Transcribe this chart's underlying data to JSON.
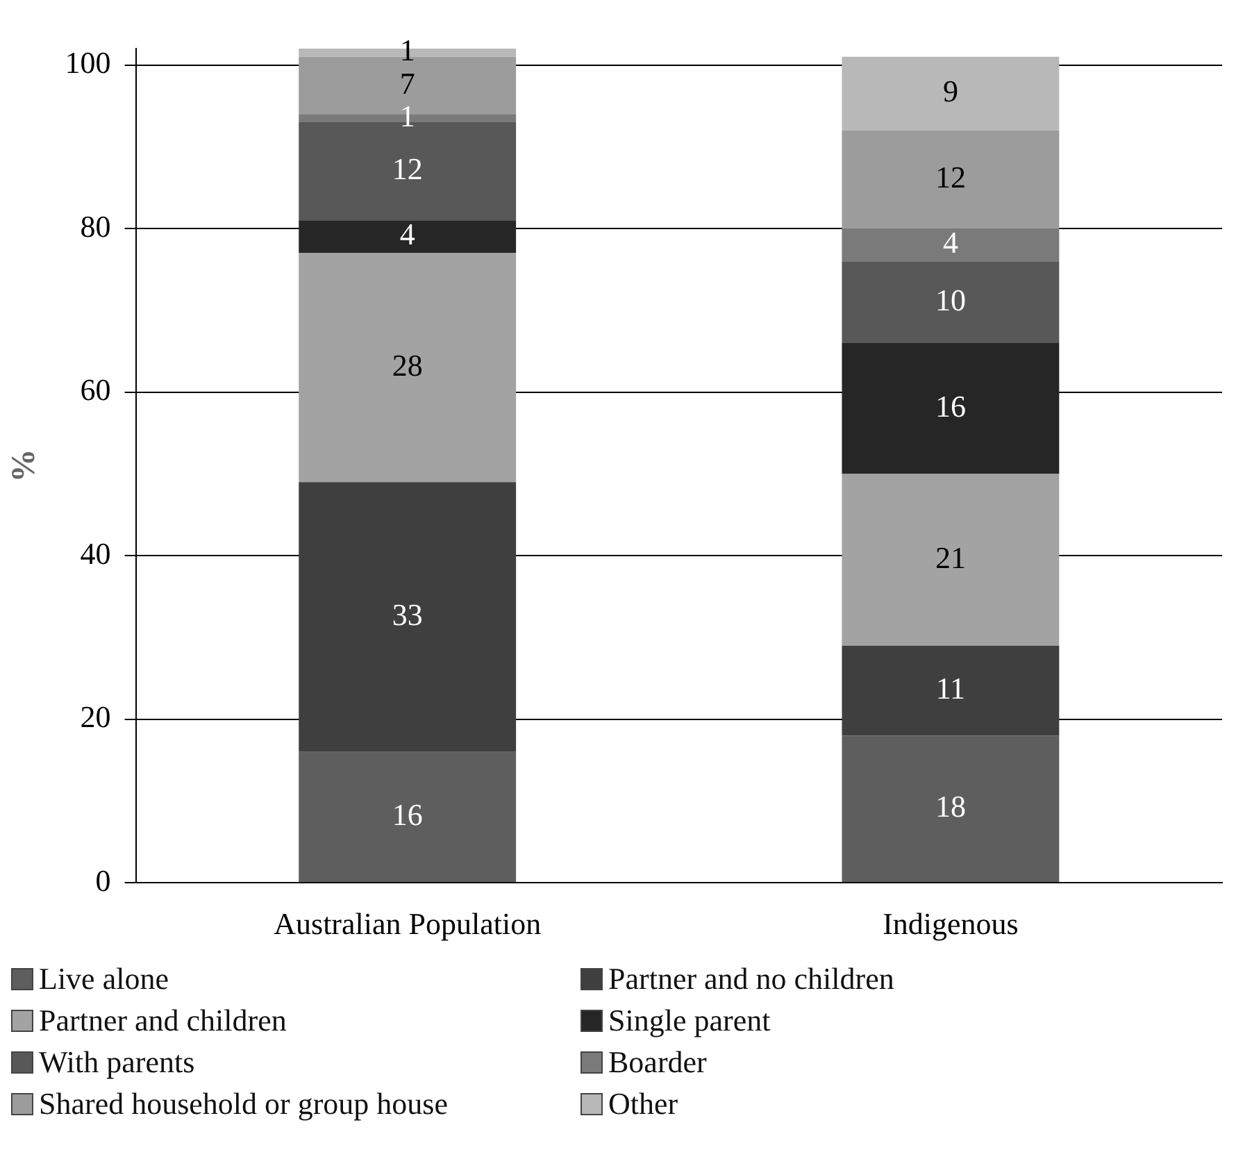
{
  "chart_data": {
    "type": "bar",
    "stacked": true,
    "ylabel": "%",
    "categories": [
      "Australian Population",
      "Indigenous"
    ],
    "series": [
      {
        "name": "Live alone",
        "color": "#5e5e5e",
        "values": [
          16,
          18
        ]
      },
      {
        "name": "Partner and no children",
        "color": "#3f3f3f",
        "values": [
          33,
          11
        ]
      },
      {
        "name": "Partner and children",
        "color": "#a3a3a3",
        "values": [
          28,
          21
        ]
      },
      {
        "name": "Single parent",
        "color": "#262626",
        "values": [
          4,
          16
        ]
      },
      {
        "name": "With parents",
        "color": "#585858",
        "values": [
          12,
          10
        ]
      },
      {
        "name": "Boarder",
        "color": "#7a7a7a",
        "values": [
          1,
          4
        ]
      },
      {
        "name": "Shared household or group house",
        "color": "#9c9c9c",
        "values": [
          7,
          12
        ]
      },
      {
        "name": "Other",
        "color": "#b8b8b8",
        "values": [
          1,
          9
        ]
      }
    ],
    "ylim": [
      0,
      102
    ],
    "yticks": [
      0,
      20,
      40,
      60,
      80,
      100
    ],
    "grid": "y",
    "legend": "bottom",
    "data_labels": true
  }
}
